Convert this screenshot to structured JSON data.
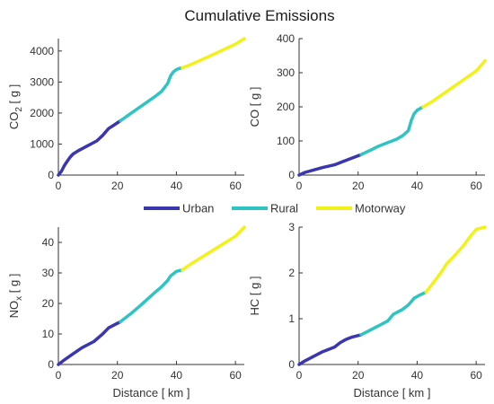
{
  "title": "Cumulative Emissions",
  "xlabel": "Distance [ km ]",
  "colors": {
    "Urban": "#3a35b0",
    "Rural": "#2ec4c4",
    "Motorway": "#f2f21a"
  },
  "chart_data": [
    {
      "type": "line",
      "panel": "top-left",
      "ylabel_main": "CO",
      "ylabel_sub": "2",
      "ylabel_unit": " [ g ]",
      "xlim": [
        0,
        63
      ],
      "ylim": [
        0,
        4400
      ],
      "xticks": [
        0,
        20,
        40,
        60
      ],
      "yticks": [
        0,
        1000,
        2000,
        3000,
        4000
      ],
      "series": [
        {
          "name": "Urban",
          "x": [
            0,
            1,
            2,
            3,
            4,
            5,
            7,
            10,
            13,
            15,
            17,
            19,
            21
          ],
          "y": [
            0,
            120,
            300,
            450,
            580,
            680,
            800,
            950,
            1100,
            1280,
            1500,
            1620,
            1750
          ]
        },
        {
          "name": "Rural",
          "x": [
            21,
            24,
            27,
            30,
            33,
            35,
            37,
            38,
            39,
            40,
            41,
            42
          ],
          "y": [
            1750,
            1950,
            2150,
            2350,
            2550,
            2700,
            2950,
            3200,
            3330,
            3400,
            3440,
            3460
          ]
        },
        {
          "name": "Motorway",
          "x": [
            42,
            45,
            50,
            55,
            60,
            63
          ],
          "y": [
            3460,
            3570,
            3780,
            4000,
            4220,
            4400
          ]
        }
      ]
    },
    {
      "type": "line",
      "panel": "top-right",
      "ylabel_main": "CO",
      "ylabel_sub": "",
      "ylabel_unit": " [ g ]",
      "xlim": [
        0,
        63
      ],
      "ylim": [
        0,
        400
      ],
      "xticks": [
        0,
        20,
        40,
        60
      ],
      "yticks": [
        0,
        100,
        200,
        300,
        400
      ],
      "series": [
        {
          "name": "Urban",
          "x": [
            0,
            2,
            5,
            8,
            12,
            15,
            18,
            21
          ],
          "y": [
            0,
            8,
            15,
            22,
            30,
            40,
            50,
            60
          ]
        },
        {
          "name": "Rural",
          "x": [
            21,
            24,
            27,
            30,
            33,
            35,
            37,
            38,
            39,
            40,
            41,
            42
          ],
          "y": [
            60,
            72,
            85,
            95,
            105,
            115,
            130,
            160,
            180,
            190,
            195,
            200
          ]
        },
        {
          "name": "Motorway",
          "x": [
            42,
            45,
            50,
            55,
            60,
            63
          ],
          "y": [
            200,
            215,
            245,
            275,
            305,
            335
          ]
        }
      ]
    },
    {
      "type": "line",
      "panel": "bottom-left",
      "ylabel_main": "NO",
      "ylabel_sub": "x",
      "ylabel_unit": " [ g ]",
      "xlim": [
        0,
        63
      ],
      "ylim": [
        0,
        45
      ],
      "xticks": [
        0,
        20,
        40,
        60
      ],
      "yticks": [
        0,
        10,
        20,
        30,
        40
      ],
      "series": [
        {
          "name": "Urban",
          "x": [
            0,
            2,
            5,
            8,
            12,
            15,
            17,
            19,
            21
          ],
          "y": [
            0,
            1.5,
            3.5,
            5.5,
            7.5,
            10,
            12,
            13,
            14
          ]
        },
        {
          "name": "Rural",
          "x": [
            21,
            25,
            28,
            32,
            35,
            37,
            38,
            40,
            42
          ],
          "y": [
            14,
            17,
            19.5,
            23,
            25.5,
            27.5,
            29,
            30.5,
            31
          ]
        },
        {
          "name": "Motorway",
          "x": [
            42,
            45,
            50,
            55,
            60,
            63
          ],
          "y": [
            31,
            33,
            36,
            39,
            42,
            45
          ]
        }
      ]
    },
    {
      "type": "line",
      "panel": "bottom-right",
      "ylabel_main": "HC",
      "ylabel_sub": "",
      "ylabel_unit": " [ g ]",
      "xlim": [
        0,
        63
      ],
      "ylim": [
        0,
        3
      ],
      "xticks": [
        0,
        20,
        40,
        60
      ],
      "yticks": [
        0,
        1,
        2,
        3
      ],
      "series": [
        {
          "name": "Urban",
          "x": [
            0,
            2,
            5,
            8,
            12,
            14,
            16,
            18,
            21
          ],
          "y": [
            0,
            0.08,
            0.18,
            0.28,
            0.38,
            0.48,
            0.55,
            0.6,
            0.65
          ]
        },
        {
          "name": "Rural",
          "x": [
            21,
            25,
            28,
            30,
            32,
            35,
            37,
            39,
            41,
            43
          ],
          "y": [
            0.65,
            0.78,
            0.88,
            0.95,
            1.1,
            1.2,
            1.3,
            1.45,
            1.52,
            1.58
          ]
        },
        {
          "name": "Motorway",
          "x": [
            43,
            45,
            48,
            50,
            53,
            56,
            58,
            60,
            63
          ],
          "y": [
            1.58,
            1.75,
            2.0,
            2.2,
            2.4,
            2.62,
            2.8,
            2.95,
            3.0
          ]
        }
      ]
    }
  ],
  "legend": {
    "position": "center",
    "entries": [
      "Urban",
      "Rural",
      "Motorway"
    ]
  }
}
